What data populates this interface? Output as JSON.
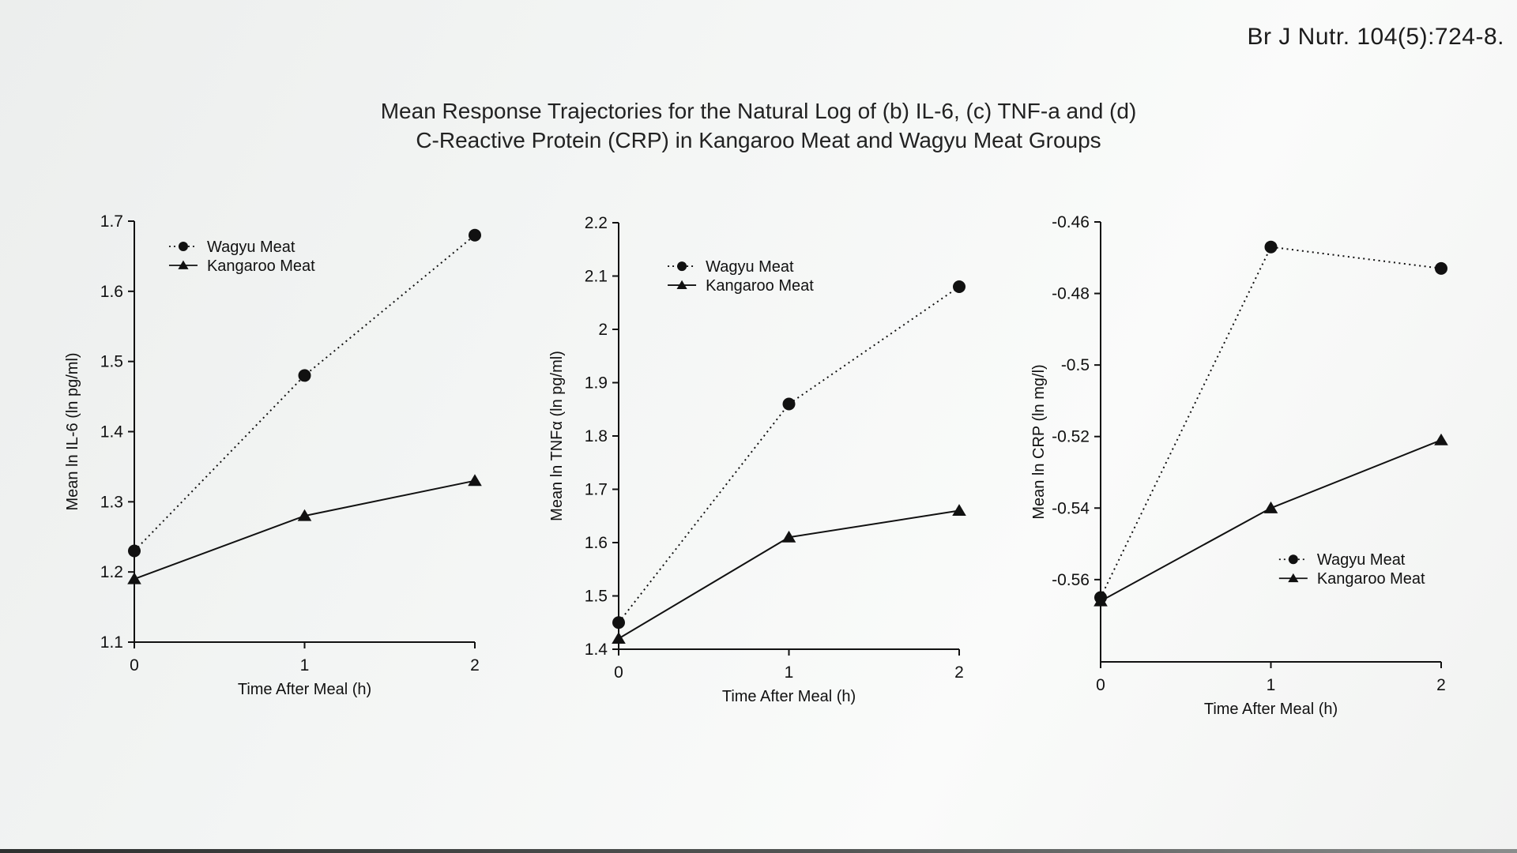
{
  "citation": "Br J Nutr. 104(5):724-8.",
  "title_line1": "Mean Response Trajectories for the Natural Log of (b) IL-6, (c) TNF-a and (d)",
  "title_line2": "C-Reactive Protein (CRP) in Kangaroo Meat and Wagyu Meat Groups",
  "series_color": "#111111",
  "chart_data": [
    {
      "id": "il6",
      "type": "line",
      "x": [
        0,
        1,
        2
      ],
      "xticks": [
        "0",
        "1",
        "2"
      ],
      "xlabel": "Time After Meal (h)",
      "ylabel": "Mean ln IL-6 (ln pg/ml)",
      "ylim": [
        1.1,
        1.7
      ],
      "yticks": [
        1.7,
        1.6,
        1.5,
        1.4,
        1.3,
        1.2,
        1.1
      ],
      "grid": false,
      "series": [
        {
          "name": "Wagyu Meat",
          "marker": "circle",
          "line": "dotted",
          "values": [
            1.23,
            1.48,
            1.68
          ]
        },
        {
          "name": "Kangaroo Meat",
          "marker": "triangle",
          "line": "solid",
          "values": [
            1.19,
            1.28,
            1.33
          ]
        }
      ],
      "legend": {
        "position": "top-left",
        "fx": 0.102,
        "fy": 0.06
      }
    },
    {
      "id": "tnfa",
      "type": "line",
      "x": [
        0,
        1,
        2
      ],
      "xticks": [
        "0",
        "1",
        "2"
      ],
      "xlabel": "Time After Meal (h)",
      "ylabel": "Mean ln TNFα (ln pg/ml)",
      "ylim": [
        1.4,
        2.2
      ],
      "yticks": [
        2.2,
        2.1,
        2,
        1.9,
        1.8,
        1.7,
        1.6,
        1.5,
        1.4
      ],
      "grid": false,
      "series": [
        {
          "name": "Wagyu Meat",
          "marker": "circle",
          "line": "dotted",
          "values": [
            1.45,
            1.86,
            2.08
          ]
        },
        {
          "name": "Kangaroo Meat",
          "marker": "triangle",
          "line": "solid",
          "values": [
            1.42,
            1.61,
            1.66
          ]
        }
      ],
      "legend": {
        "position": "top-right",
        "fx": 0.144,
        "fy": 0.102
      }
    },
    {
      "id": "crp",
      "type": "line",
      "x": [
        0,
        1,
        2
      ],
      "xticks": [
        "0",
        "1",
        "2"
      ],
      "xlabel": "Time After Meal (h)",
      "ylabel": "Mean ln CRP  (ln mg/l)",
      "ylim": [
        -0.583,
        -0.46
      ],
      "yticks": [
        -0.46,
        -0.48,
        -0.5,
        -0.52,
        -0.54,
        -0.56
      ],
      "grid": false,
      "series": [
        {
          "name": "Wagyu Meat",
          "marker": "circle",
          "line": "dotted",
          "values": [
            -0.565,
            -0.467,
            -0.473
          ]
        },
        {
          "name": "Kangaroo Meat",
          "marker": "triangle",
          "line": "solid",
          "values": [
            -0.566,
            -0.54,
            -0.521
          ]
        }
      ],
      "legend": {
        "position": "mid-right",
        "fx": 0.524,
        "fy": 0.767
      }
    }
  ]
}
